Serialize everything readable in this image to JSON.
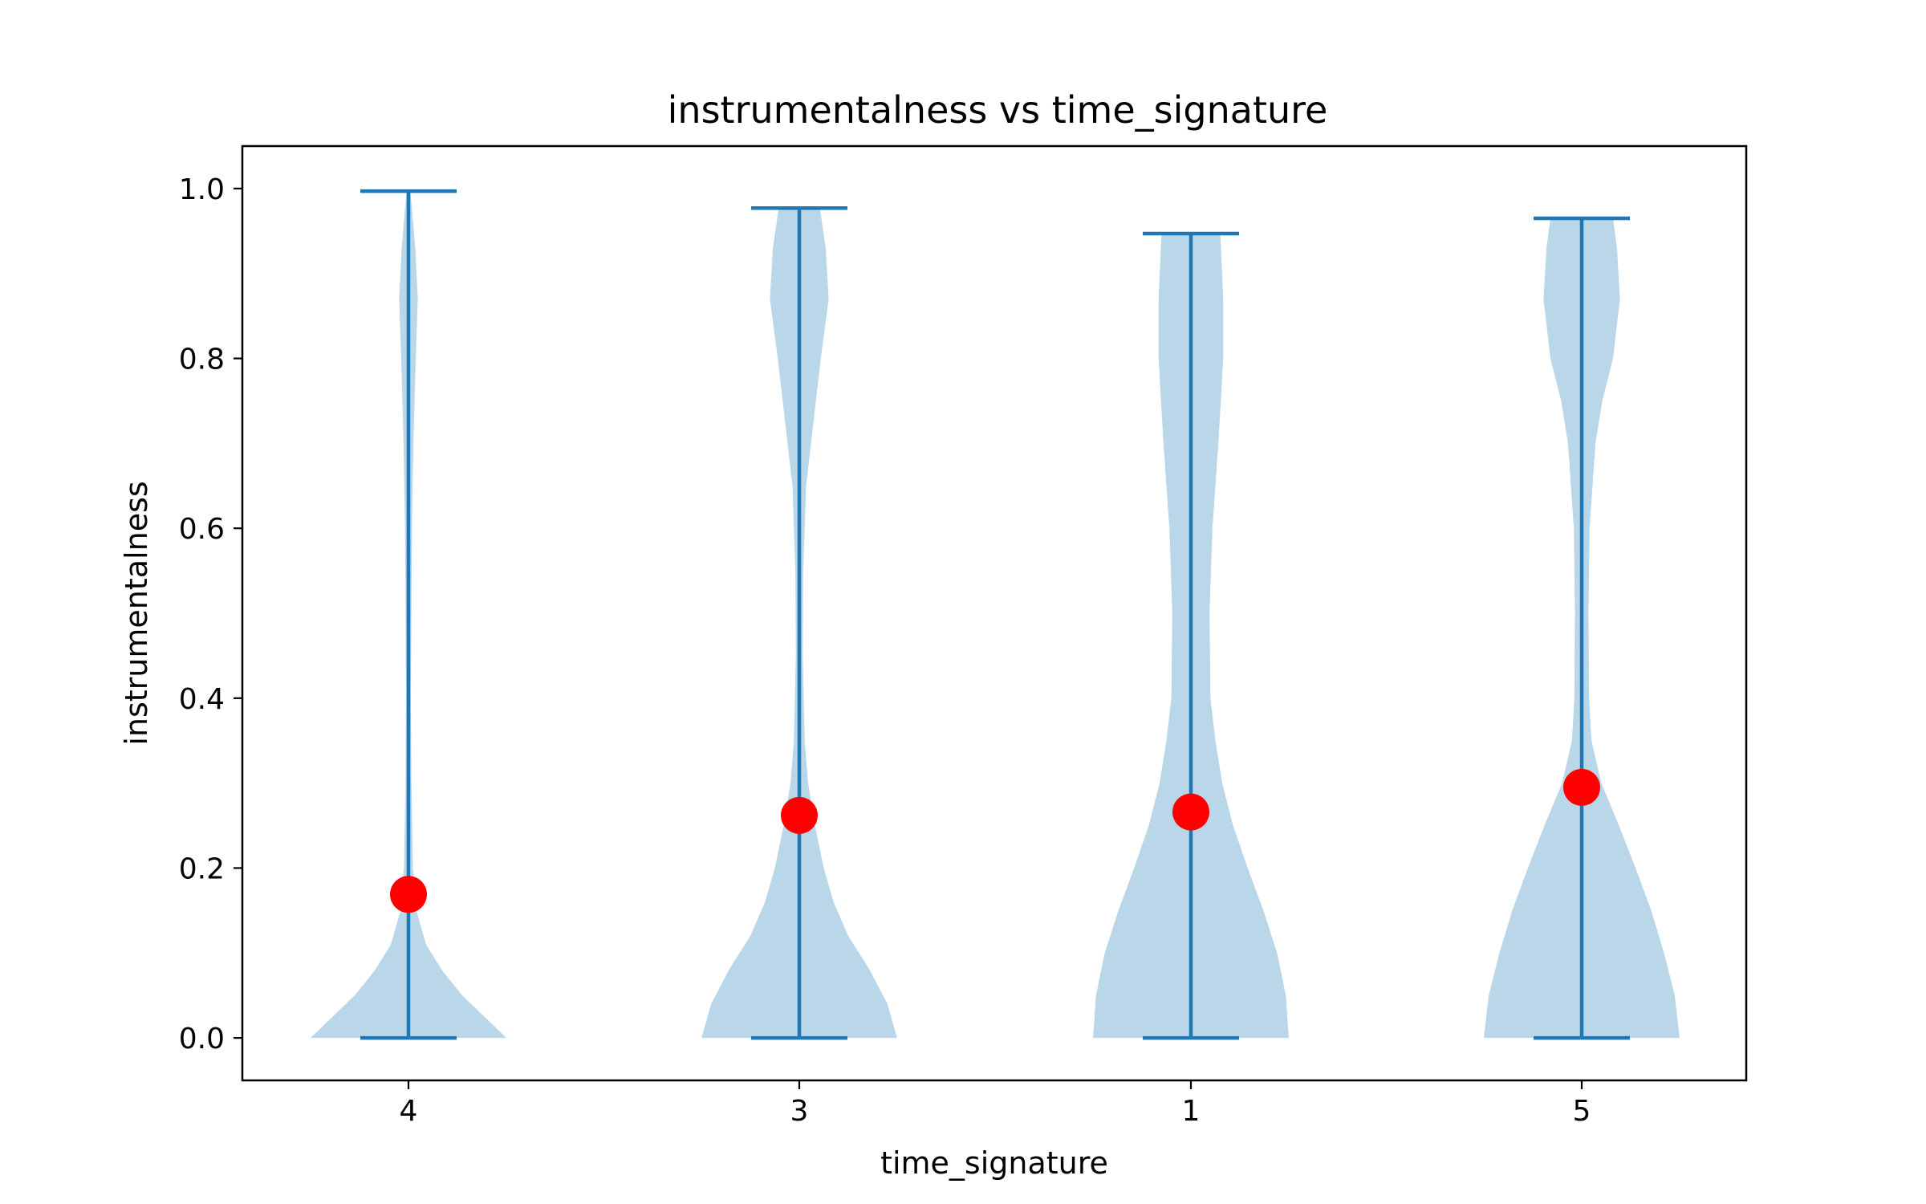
{
  "chart_data": {
    "type": "violin",
    "title": "instrumentalness vs time_signature",
    "xlabel": "time_signature",
    "ylabel": "instrumentalness",
    "categories": [
      "4",
      "3",
      "1",
      "5"
    ],
    "ylim": [
      -0.05,
      1.05
    ],
    "yticks": [
      0.0,
      0.2,
      0.4,
      0.6,
      0.8,
      1.0
    ],
    "ytick_labels": [
      "0.0",
      "0.2",
      "0.4",
      "0.6",
      "0.8",
      "1.0"
    ],
    "grid": false,
    "colors": {
      "violin": "#1f77b4",
      "violin_fill": "#bad6e9",
      "mean_marker": "#ff0000",
      "spine": "#000000"
    },
    "series": [
      {
        "category": "4",
        "min": 0.0,
        "max": 0.997,
        "mean": 0.169,
        "density": [
          [
            0.0,
            1.0
          ],
          [
            0.02,
            0.82
          ],
          [
            0.05,
            0.55
          ],
          [
            0.08,
            0.34
          ],
          [
            0.11,
            0.18
          ],
          [
            0.15,
            0.08
          ],
          [
            0.2,
            0.045
          ],
          [
            0.3,
            0.03
          ],
          [
            0.4,
            0.025
          ],
          [
            0.5,
            0.03
          ],
          [
            0.6,
            0.035
          ],
          [
            0.7,
            0.05
          ],
          [
            0.8,
            0.075
          ],
          [
            0.87,
            0.095
          ],
          [
            0.93,
            0.07
          ],
          [
            0.997,
            0.02
          ]
        ]
      },
      {
        "category": "3",
        "min": 0.0,
        "max": 0.977,
        "mean": 0.262,
        "density": [
          [
            0.0,
            1.0
          ],
          [
            0.04,
            0.9
          ],
          [
            0.08,
            0.72
          ],
          [
            0.12,
            0.5
          ],
          [
            0.16,
            0.35
          ],
          [
            0.2,
            0.25
          ],
          [
            0.25,
            0.16
          ],
          [
            0.3,
            0.09
          ],
          [
            0.35,
            0.055
          ],
          [
            0.45,
            0.035
          ],
          [
            0.55,
            0.04
          ],
          [
            0.65,
            0.07
          ],
          [
            0.75,
            0.17
          ],
          [
            0.8,
            0.22
          ],
          [
            0.87,
            0.3
          ],
          [
            0.93,
            0.27
          ],
          [
            0.977,
            0.21
          ]
        ]
      },
      {
        "category": "1",
        "min": 0.0,
        "max": 0.947,
        "mean": 0.266,
        "density": [
          [
            0.0,
            1.0
          ],
          [
            0.05,
            0.97
          ],
          [
            0.1,
            0.88
          ],
          [
            0.15,
            0.74
          ],
          [
            0.2,
            0.58
          ],
          [
            0.25,
            0.43
          ],
          [
            0.3,
            0.32
          ],
          [
            0.35,
            0.25
          ],
          [
            0.4,
            0.2
          ],
          [
            0.5,
            0.19
          ],
          [
            0.6,
            0.22
          ],
          [
            0.7,
            0.28
          ],
          [
            0.8,
            0.33
          ],
          [
            0.87,
            0.33
          ],
          [
            0.947,
            0.3
          ]
        ]
      },
      {
        "category": "5",
        "min": 0.0,
        "max": 0.965,
        "mean": 0.295,
        "density": [
          [
            0.0,
            1.0
          ],
          [
            0.05,
            0.95
          ],
          [
            0.1,
            0.84
          ],
          [
            0.15,
            0.71
          ],
          [
            0.2,
            0.55
          ],
          [
            0.25,
            0.38
          ],
          [
            0.3,
            0.2
          ],
          [
            0.35,
            0.1
          ],
          [
            0.4,
            0.075
          ],
          [
            0.5,
            0.07
          ],
          [
            0.6,
            0.08
          ],
          [
            0.7,
            0.14
          ],
          [
            0.75,
            0.21
          ],
          [
            0.8,
            0.32
          ],
          [
            0.87,
            0.39
          ],
          [
            0.93,
            0.36
          ],
          [
            0.965,
            0.32
          ]
        ]
      }
    ]
  }
}
